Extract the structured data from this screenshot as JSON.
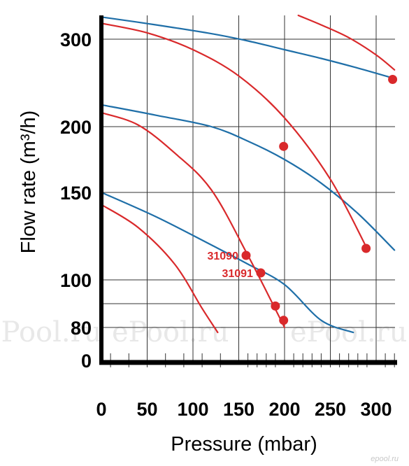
{
  "chart_data": {
    "type": "line",
    "title": "",
    "xlabel": "Pressure (mbar)",
    "ylabel": "Flow rate  (m³/h)",
    "x_ticks": [
      0,
      50,
      100,
      150,
      200,
      250,
      300
    ],
    "y_ticks": [
      0,
      80,
      100,
      150,
      200,
      300
    ],
    "xlim": [
      0,
      320
    ],
    "ylim": [
      0,
      330
    ],
    "grid": true,
    "watermark": "ePool.ru",
    "corner_mark": "epool.ru",
    "colors": {
      "blue_curves": "#1f6fa8",
      "red_curves": "#d9292b",
      "grid": "#333333",
      "axis": "#000000"
    },
    "series": [
      {
        "color": "blue",
        "x": [
          0,
          60,
          120,
          160,
          200,
          240,
          275
        ],
        "y": [
          150,
          136,
          120,
          109,
          98,
          83,
          68
        ]
      },
      {
        "color": "blue",
        "x": [
          0,
          60,
          120,
          160,
          200,
          240,
          280,
          320
        ],
        "y": [
          225,
          213,
          200,
          189,
          175,
          157,
          138,
          117
        ]
      },
      {
        "color": "blue",
        "x": [
          0,
          60,
          120,
          160,
          200,
          240,
          280,
          320
        ],
        "y": [
          328,
          318,
          307,
          298,
          288,
          278,
          267,
          255
        ]
      },
      {
        "color": "red",
        "x": [
          0,
          40,
          80,
          110,
          127
        ],
        "y": [
          143,
          130,
          109,
          88,
          68
        ]
      },
      {
        "color": "red",
        "x": [
          0,
          40,
          80,
          120,
          160,
          200
        ],
        "y": [
          216,
          202,
          180,
          152,
          114,
          80
        ]
      },
      {
        "color": "red",
        "x": [
          0,
          50,
          100,
          150,
          200,
          250,
          290
        ],
        "y": [
          320,
          308,
          288,
          258,
          210,
          160,
          118
        ]
      },
      {
        "color": "red",
        "x": [
          215,
          240,
          270,
          300,
          320
        ],
        "y": [
          330,
          318,
          302,
          282,
          265
        ]
      }
    ],
    "points": [
      {
        "x": 158,
        "y": 114,
        "label": "31090"
      },
      {
        "x": 174,
        "y": 104,
        "label": "31091"
      },
      {
        "x": 190,
        "y": 89
      },
      {
        "x": 199,
        "y": 83
      },
      {
        "x": 199,
        "y": 185
      },
      {
        "x": 289,
        "y": 118
      },
      {
        "x": 318,
        "y": 254
      }
    ]
  }
}
